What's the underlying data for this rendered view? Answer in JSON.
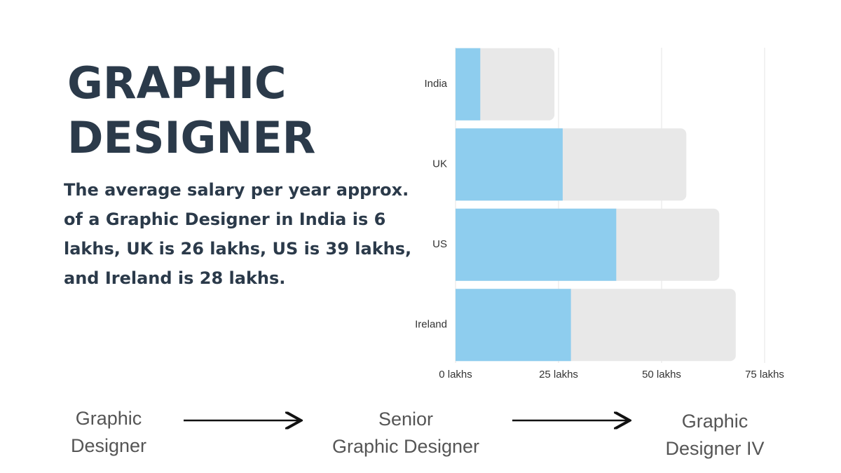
{
  "title_lines": [
    "GRAPHIC",
    "DESIGNER"
  ],
  "description": "The average salary per year approx. of a Graphic Designer in India is 6 lakhs, UK is 26 lakhs, US is 39 lakhs, and Ireland is 28 lakhs.",
  "career_path": [
    [
      "Graphic",
      "Designer"
    ],
    [
      "Senior",
      "Graphic Designer"
    ],
    [
      "Graphic",
      "Designer IV"
    ]
  ],
  "chart_data": {
    "type": "bar",
    "orientation": "horizontal",
    "overlap": true,
    "categories": [
      "India",
      "UK",
      "US",
      "Ireland"
    ],
    "series": [
      {
        "color": "#8ecdee",
        "values": [
          6,
          26,
          39,
          28
        ]
      },
      {
        "color": "#e8e8e8",
        "values": [
          24,
          56,
          64,
          68
        ]
      }
    ],
    "xlim": [
      0,
      75
    ],
    "xticks": [
      {
        "value": 0,
        "label": "0 lakhs"
      },
      {
        "value": 25,
        "label": "25 lakhs"
      },
      {
        "value": 50,
        "label": "50 lakhs"
      },
      {
        "value": 75,
        "label": "75 lakhs"
      }
    ],
    "grid": true
  }
}
